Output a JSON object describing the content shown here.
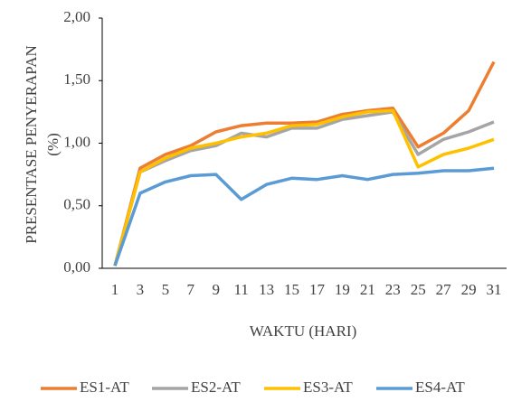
{
  "chart_data": {
    "type": "line",
    "xlabel": "WAKTU (HARI)",
    "ylabel": [
      "PRESENTASE PENYERAPAN",
      "(%)"
    ],
    "categories": [
      "1",
      "3",
      "5",
      "7",
      "9",
      "11",
      "13",
      "15",
      "17",
      "19",
      "21",
      "23",
      "25",
      "27",
      "29",
      "31"
    ],
    "series": [
      {
        "name": "ES1-AT",
        "color": "#ed7d31",
        "values": [
          0.02,
          0.8,
          0.91,
          0.98,
          1.09,
          1.14,
          1.16,
          1.16,
          1.17,
          1.23,
          1.26,
          1.28,
          0.97,
          1.08,
          1.26,
          1.65
        ]
      },
      {
        "name": "ES2-AT",
        "color": "#a5a5a5",
        "values": [
          0.02,
          0.77,
          0.86,
          0.94,
          0.98,
          1.08,
          1.05,
          1.12,
          1.12,
          1.19,
          1.22,
          1.25,
          0.91,
          1.03,
          1.09,
          1.17
        ]
      },
      {
        "name": "ES3-AT",
        "color": "#ffc000",
        "values": [
          0.02,
          0.77,
          0.88,
          0.96,
          1.0,
          1.05,
          1.08,
          1.14,
          1.15,
          1.21,
          1.25,
          1.26,
          0.81,
          0.91,
          0.96,
          1.03
        ]
      },
      {
        "name": "ES4-AT",
        "color": "#5b9bd5",
        "values": [
          0.02,
          0.6,
          0.69,
          0.74,
          0.75,
          0.55,
          0.67,
          0.72,
          0.71,
          0.74,
          0.71,
          0.75,
          0.76,
          0.78,
          0.78,
          0.8
        ]
      }
    ],
    "ylim": [
      0,
      2
    ],
    "yticks": [
      {
        "value": 0,
        "label": "0,00"
      },
      {
        "value": 0.5,
        "label": "0,50"
      },
      {
        "value": 1,
        "label": "1,00"
      },
      {
        "value": 1.5,
        "label": "1,50"
      },
      {
        "value": 2,
        "label": "2,00"
      }
    ],
    "grid": false,
    "legend": "bottom"
  }
}
